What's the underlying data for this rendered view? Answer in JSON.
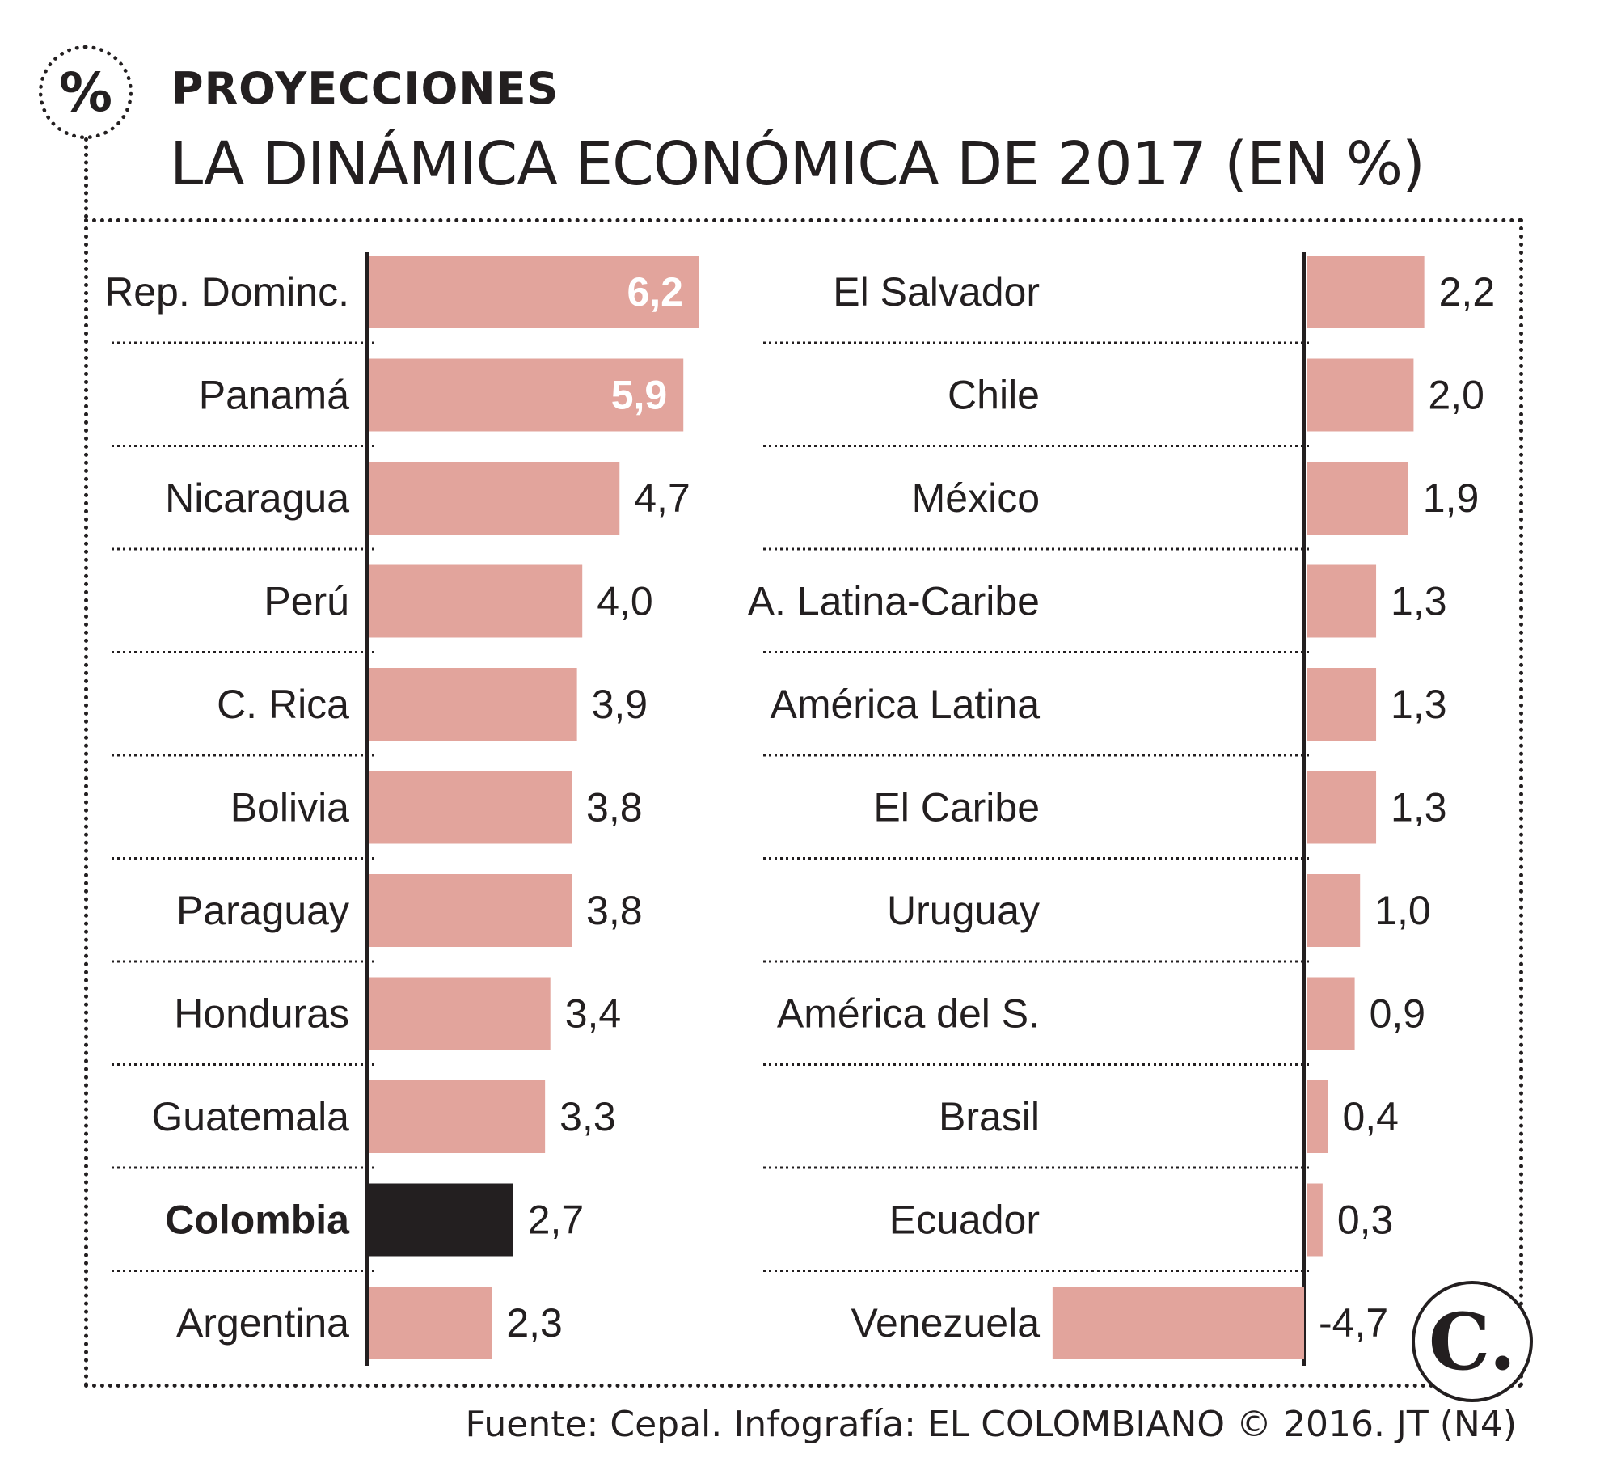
{
  "header": {
    "icon_symbol": "%",
    "kicker": "PROYECCIONES",
    "title": "LA DINÁMICA ECONÓMICA DE 2017 (EN %)"
  },
  "colors": {
    "bar": "#e2a49c",
    "highlight": "#231f20",
    "text": "#231f20",
    "inside_label": "#ffffff"
  },
  "chart_data": [
    {
      "type": "bar",
      "orientation": "horizontal",
      "categories": [
        "Rep. Dominc.",
        "Panamá",
        "Nicaragua",
        "Perú",
        "C. Rica",
        "Bolivia",
        "Paraguay",
        "Honduras",
        "Guatemala",
        "Colombia",
        "Argentina"
      ],
      "values": [
        6.2,
        5.9,
        4.7,
        4.0,
        3.9,
        3.8,
        3.8,
        3.4,
        3.3,
        2.7,
        2.3
      ],
      "labels": [
        "6,2",
        "5,9",
        "4,7",
        "4,0",
        "3,9",
        "3,8",
        "3,8",
        "3,4",
        "3,3",
        "2,7",
        "2,3"
      ],
      "highlight": "Colombia",
      "xlim": [
        0,
        6.2
      ]
    },
    {
      "type": "bar",
      "orientation": "horizontal",
      "categories": [
        "El Salvador",
        "Chile",
        "México",
        "A. Latina-Caribe",
        "América Latina",
        "El Caribe",
        "Uruguay",
        "América del S.",
        "Brasil",
        "Ecuador",
        "Venezuela"
      ],
      "values": [
        2.2,
        2.0,
        1.9,
        1.3,
        1.3,
        1.3,
        1.0,
        0.9,
        0.4,
        0.3,
        -4.7
      ],
      "labels": [
        "2,2",
        "2,0",
        "1,9",
        "1,3",
        "1,3",
        "1,3",
        "1,0",
        "0,9",
        "0,4",
        "0,3",
        "-4,7"
      ],
      "xlim": [
        -4.7,
        2.2
      ]
    }
  ],
  "brand_logo": "C.",
  "source": "Fuente: Cepal. Infografía: EL COLOMBIANO © 2016. JT (N4)"
}
